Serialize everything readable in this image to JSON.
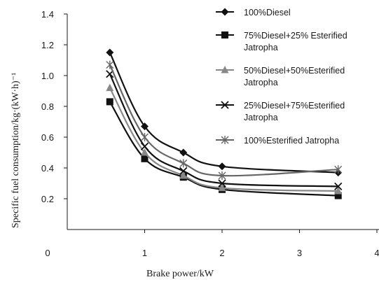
{
  "chart_data": {
    "type": "line",
    "title": "",
    "xlabel": "Brake power/kW",
    "ylabel": "Specific fuel consumption/kg·(kW·h)⁻¹",
    "xlim": [
      0,
      4
    ],
    "ylim": [
      0,
      1.4
    ],
    "x_ticks": [
      "0",
      "1",
      "2",
      "3",
      "4"
    ],
    "y_ticks": [
      "0.2",
      "0.4",
      "0.6",
      "0.8",
      "1.0",
      "1.2",
      "1.4"
    ],
    "x": [
      0.55,
      1.0,
      1.5,
      2.0,
      3.5
    ],
    "grid": false,
    "legend_position": "top-right",
    "series": [
      {
        "name": "100%Diesel",
        "marker": "diamond",
        "color": "#111111",
        "values": [
          1.15,
          0.67,
          0.5,
          0.41,
          0.37
        ]
      },
      {
        "name": "75%Diesel+25% Esterified Jatropha",
        "marker": "square",
        "color": "#111111",
        "values": [
          0.83,
          0.46,
          0.34,
          0.26,
          0.22
        ]
      },
      {
        "name": "50%Diesel+50%Esterified Jatropha",
        "marker": "triangle",
        "color": "#888888",
        "values": [
          0.92,
          0.5,
          0.35,
          0.27,
          0.25
        ]
      },
      {
        "name": "25%Diesel+75%Esterified Jatropha",
        "marker": "x",
        "color": "#111111",
        "values": [
          1.01,
          0.54,
          0.38,
          0.3,
          0.28
        ]
      },
      {
        "name": "100%Esterified Jatropha",
        "marker": "star",
        "color": "#666666",
        "values": [
          1.07,
          0.6,
          0.43,
          0.35,
          0.39
        ]
      }
    ]
  }
}
